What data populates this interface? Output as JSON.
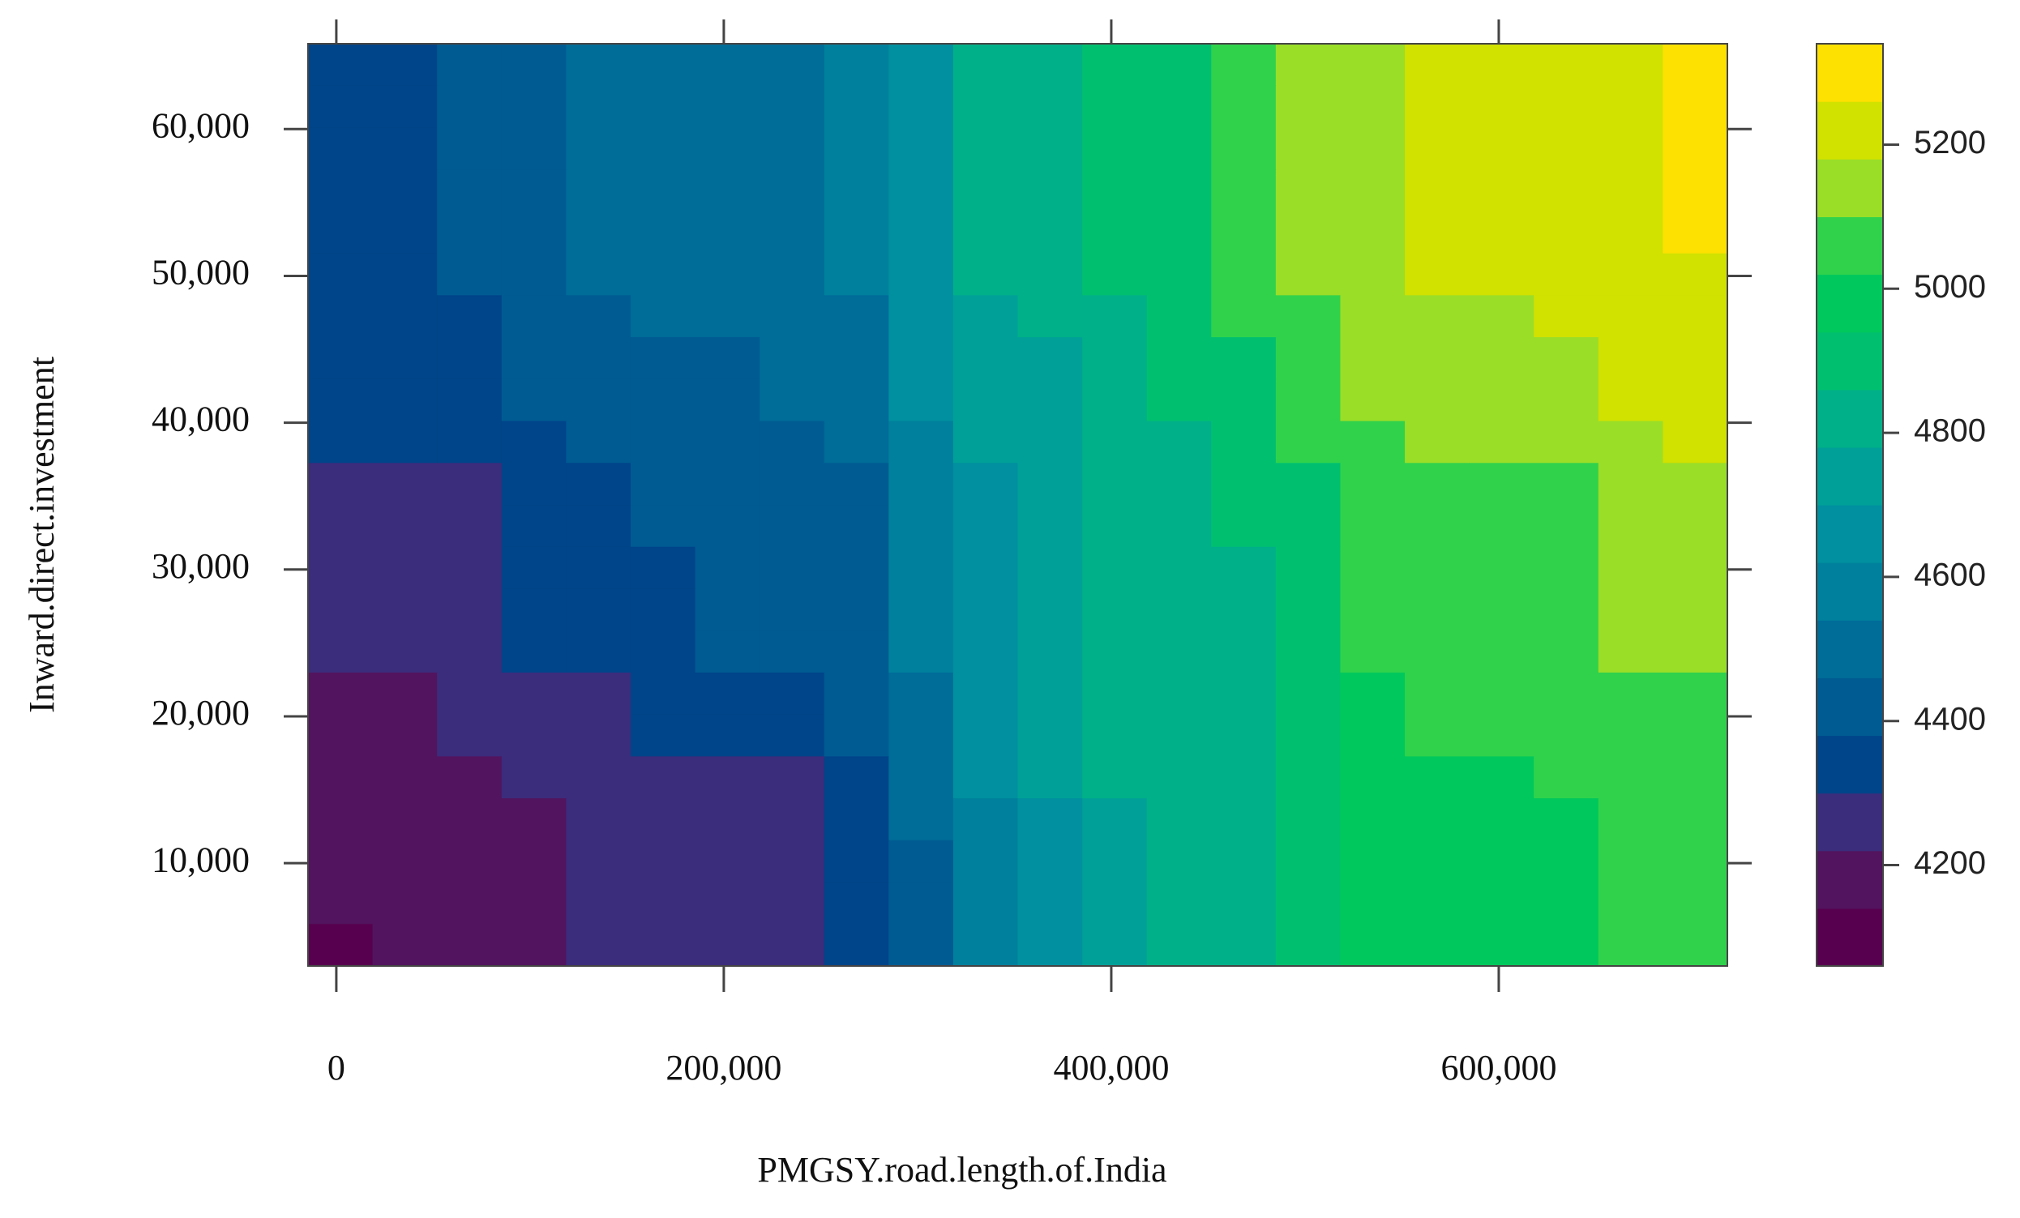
{
  "chart_data": {
    "type": "heatmap",
    "x_label": "PMGSY.road.length.of.India",
    "y_label": "Inward.direct.investment",
    "x": [
      2050,
      35350,
      68650,
      101950,
      135250,
      168550,
      201850,
      235150,
      268450,
      301750,
      335050,
      368350,
      401650,
      434950,
      468250,
      501550,
      534850,
      568150,
      601450,
      634750,
      668050,
      701350
    ],
    "y": [
      64382,
      61527,
      58672,
      55817,
      52962,
      50107,
      47252,
      44397,
      41542,
      38687,
      35832,
      32977,
      30122,
      27267,
      24412,
      21557,
      18702,
      15847,
      12992,
      10137,
      7282,
      4427
    ],
    "z": [
      [
        4340,
        4340,
        4420,
        4420,
        4500,
        4500,
        4500,
        4500,
        4580,
        4660,
        4820,
        4820,
        4900,
        4900,
        5060,
        5140,
        5140,
        5220,
        5220,
        5220,
        5220,
        5300
      ],
      [
        4340,
        4340,
        4420,
        4420,
        4500,
        4500,
        4500,
        4500,
        4580,
        4660,
        4820,
        4820,
        4900,
        4900,
        5060,
        5140,
        5140,
        5220,
        5220,
        5220,
        5220,
        5300
      ],
      [
        4340,
        4340,
        4420,
        4420,
        4500,
        4500,
        4500,
        4500,
        4580,
        4660,
        4820,
        4820,
        4900,
        4900,
        5060,
        5140,
        5140,
        5220,
        5220,
        5220,
        5220,
        5300
      ],
      [
        4340,
        4340,
        4420,
        4420,
        4500,
        4500,
        4500,
        4500,
        4580,
        4660,
        4820,
        4820,
        4900,
        4900,
        5060,
        5140,
        5140,
        5220,
        5220,
        5220,
        5220,
        5300
      ],
      [
        4340,
        4340,
        4420,
        4420,
        4500,
        4500,
        4500,
        4500,
        4580,
        4660,
        4820,
        4820,
        4900,
        4900,
        5060,
        5140,
        5140,
        5220,
        5220,
        5220,
        5220,
        5300
      ],
      [
        4340,
        4340,
        4420,
        4420,
        4500,
        4500,
        4500,
        4500,
        4580,
        4660,
        4820,
        4820,
        4900,
        4900,
        5060,
        5140,
        5140,
        5220,
        5220,
        5220,
        5220,
        5220
      ],
      [
        4340,
        4340,
        4340,
        4420,
        4420,
        4500,
        4500,
        4500,
        4500,
        4660,
        4740,
        4820,
        4820,
        4900,
        5060,
        5060,
        5140,
        5140,
        5140,
        5220,
        5220,
        5220
      ],
      [
        4340,
        4340,
        4340,
        4420,
        4420,
        4420,
        4420,
        4500,
        4500,
        4660,
        4740,
        4740,
        4820,
        4900,
        4900,
        5060,
        5140,
        5140,
        5140,
        5140,
        5220,
        5220
      ],
      [
        4340,
        4340,
        4340,
        4420,
        4420,
        4420,
        4420,
        4500,
        4500,
        4660,
        4740,
        4740,
        4820,
        4900,
        4900,
        5060,
        5140,
        5140,
        5140,
        5140,
        5220,
        5220
      ],
      [
        4340,
        4340,
        4340,
        4340,
        4420,
        4420,
        4420,
        4420,
        4500,
        4580,
        4740,
        4740,
        4820,
        4820,
        4900,
        5060,
        5060,
        5140,
        5140,
        5140,
        5140,
        5220
      ],
      [
        4260,
        4260,
        4260,
        4340,
        4340,
        4420,
        4420,
        4420,
        4420,
        4580,
        4660,
        4740,
        4820,
        4820,
        4900,
        4900,
        5060,
        5060,
        5060,
        5060,
        5140,
        5140
      ],
      [
        4260,
        4260,
        4260,
        4340,
        4340,
        4420,
        4420,
        4420,
        4420,
        4580,
        4660,
        4740,
        4820,
        4820,
        4900,
        4900,
        5060,
        5060,
        5060,
        5060,
        5140,
        5140
      ],
      [
        4260,
        4260,
        4260,
        4340,
        4340,
        4340,
        4420,
        4420,
        4420,
        4580,
        4660,
        4740,
        4820,
        4820,
        4820,
        4900,
        5060,
        5060,
        5060,
        5060,
        5140,
        5140
      ],
      [
        4260,
        4260,
        4260,
        4340,
        4340,
        4340,
        4420,
        4420,
        4420,
        4580,
        4660,
        4740,
        4820,
        4820,
        4820,
        4900,
        5060,
        5060,
        5060,
        5060,
        5140,
        5140
      ],
      [
        4260,
        4260,
        4260,
        4340,
        4340,
        4340,
        4420,
        4420,
        4420,
        4580,
        4660,
        4740,
        4820,
        4820,
        4820,
        4900,
        5060,
        5060,
        5060,
        5060,
        5140,
        5140
      ],
      [
        4180,
        4180,
        4260,
        4260,
        4260,
        4340,
        4340,
        4340,
        4420,
        4500,
        4660,
        4740,
        4820,
        4820,
        4820,
        4900,
        4980,
        5060,
        5060,
        5060,
        5060,
        5060
      ],
      [
        4180,
        4180,
        4260,
        4260,
        4260,
        4340,
        4340,
        4340,
        4420,
        4500,
        4660,
        4740,
        4820,
        4820,
        4820,
        4900,
        4980,
        5060,
        5060,
        5060,
        5060,
        5060
      ],
      [
        4180,
        4180,
        4180,
        4260,
        4260,
        4260,
        4260,
        4260,
        4340,
        4500,
        4660,
        4740,
        4820,
        4820,
        4820,
        4900,
        4980,
        4980,
        4980,
        5060,
        5060,
        5060
      ],
      [
        4180,
        4180,
        4180,
        4180,
        4260,
        4260,
        4260,
        4260,
        4340,
        4500,
        4580,
        4660,
        4740,
        4820,
        4820,
        4900,
        4980,
        4980,
        4980,
        4980,
        5060,
        5060
      ],
      [
        4180,
        4180,
        4180,
        4180,
        4260,
        4260,
        4260,
        4260,
        4340,
        4420,
        4580,
        4660,
        4740,
        4820,
        4820,
        4900,
        4980,
        4980,
        4980,
        4980,
        5060,
        5060
      ],
      [
        4180,
        4180,
        4180,
        4180,
        4260,
        4260,
        4260,
        4260,
        4340,
        4420,
        4580,
        4660,
        4740,
        4820,
        4820,
        4900,
        4980,
        4980,
        4980,
        4980,
        5060,
        5060
      ],
      [
        4100,
        4180,
        4180,
        4180,
        4260,
        4260,
        4260,
        4260,
        4340,
        4420,
        4580,
        4660,
        4740,
        4820,
        4820,
        4900,
        4980,
        4980,
        4980,
        4980,
        5060,
        5060
      ]
    ],
    "xlim": [
      -14600,
      718000
    ],
    "ylim": [
      3000,
      65810
    ],
    "xticks": [
      0,
      {
        "value": 200000,
        "label": "200,000"
      },
      {
        "value": 400000,
        "label": "400,000"
      },
      {
        "value": 600000,
        "label": "600,000"
      }
    ],
    "yticks": [
      {
        "value": 10000,
        "label": "10,000"
      },
      {
        "value": 20000,
        "label": "20,000"
      },
      {
        "value": 30000,
        "label": "30,000"
      },
      {
        "value": 40000,
        "label": "40,000"
      },
      {
        "value": 50000,
        "label": "50,000"
      },
      {
        "value": 60000,
        "label": "60,000"
      }
    ],
    "colorbar": {
      "breaks": [
        4060,
        4140,
        4220,
        4300,
        4380,
        4460,
        4540,
        4620,
        4700,
        4780,
        4860,
        4940,
        5020,
        5100,
        5180,
        5260,
        5340
      ],
      "colors": [
        "#580050",
        "#52145e",
        "#3c2c7c",
        "#004489",
        "#005b92",
        "#006c98",
        "#00809c",
        "#0090a0",
        "#00a098",
        "#00b088",
        "#00c070",
        "#00c85c",
        "#30d24c",
        "#9ade28",
        "#d1e100",
        "#fde100"
      ],
      "ticks": [
        4200,
        4400,
        4600,
        4800,
        5000,
        5200
      ]
    }
  }
}
